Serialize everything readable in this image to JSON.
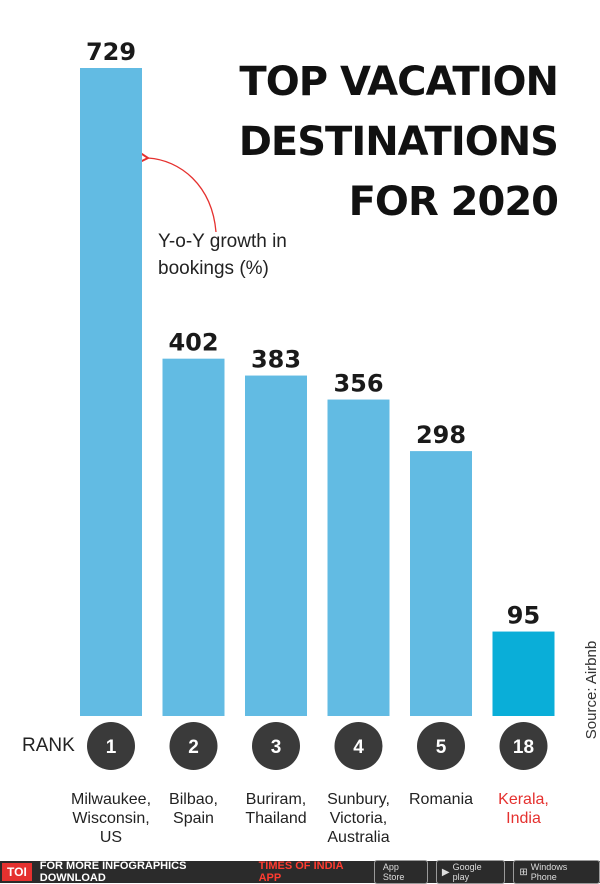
{
  "title_lines": [
    "TOP VACATION",
    "DESTINATIONS",
    "FOR 2020"
  ],
  "annotation_lines": [
    "Y-o-Y growth in",
    "bookings (%)"
  ],
  "source": "Source: Airbnb",
  "rank_label": "RANK",
  "colors": {
    "bar": "#62bbe3",
    "bar_highlight": "#0aaed8",
    "circle": "#3a3a3a",
    "highlight_text": "#e5312f"
  },
  "chart_data": {
    "type": "bar",
    "title": "TOP VACATION DESTINATIONS FOR 2020",
    "ylabel": "Y-o-Y growth in bookings (%)",
    "categories": [
      [
        "Milwaukee,",
        "Wisconsin,",
        "US"
      ],
      [
        "Bilbao,",
        "Spain"
      ],
      [
        "Buriram,",
        "Thailand"
      ],
      [
        "Sunbury,",
        "Victoria,",
        "Australia"
      ],
      [
        "Romania"
      ],
      [
        "Kerala,",
        "India"
      ]
    ],
    "values": [
      729,
      402,
      383,
      356,
      298,
      95
    ],
    "ranks": [
      "1",
      "2",
      "3",
      "4",
      "5",
      "18"
    ],
    "highlight_index": 5,
    "ylim": [
      0,
      729
    ]
  },
  "footer": {
    "logo": "TOI",
    "text": "FOR MORE  INFOGRAPHICS DOWNLOAD",
    "brand": "TIMES OF INDIA  APP",
    "stores": [
      {
        "icon": "apple-icon",
        "glyph": "",
        "label": "App Store"
      },
      {
        "icon": "google-play-icon",
        "glyph": "▶",
        "label": "Google play"
      },
      {
        "icon": "windows-icon",
        "glyph": "⊞",
        "label": "Windows Phone"
      }
    ]
  }
}
